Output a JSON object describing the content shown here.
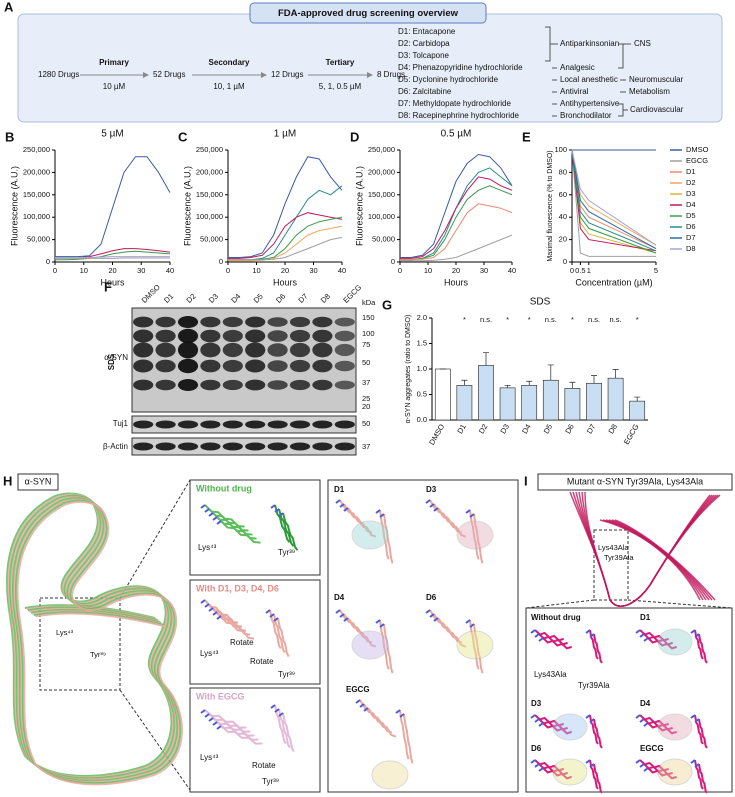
{
  "panel_a": {
    "letter": "A",
    "title": "FDA-approved drug screening overview",
    "start": "1280 Drugs",
    "stages": [
      {
        "name": "Primary",
        "dose": "10 µM",
        "result": "52 Drugs"
      },
      {
        "name": "Secondary",
        "dose": "10, 1 µM",
        "result": "12 Drugs"
      },
      {
        "name": "Tertiary",
        "dose": "5, 1, 0.5 µM",
        "result": "8 Drugs"
      }
    ],
    "drugs": [
      "D1: Entacapone",
      "D2: Carbidopa",
      "D3: Tolcapone",
      "D4: Phenazopyridine hydrochloride",
      "D5: Dyclonine hydrochloride",
      "D6: Zalcitabine",
      "D7: Methyldopate hydrochloride",
      "D8: Racepinephrine hydrochloride"
    ],
    "classes": [
      "Antiparkinsonian",
      "Analgesic",
      "Local anesthetic",
      "Antiviral",
      "Antihypertensive",
      "Bronchodilator"
    ],
    "systems": [
      "CNS",
      "Neuromuscular",
      "Metabolism",
      "Cardiovascular"
    ]
  },
  "chart_data": [
    {
      "type": "line",
      "panel": "B",
      "title": "5 µM",
      "xlabel": "Hours",
      "ylabel": "Fluorescence (A.U.)",
      "x": [
        0,
        4,
        8,
        12,
        16,
        20,
        24,
        28,
        32,
        36,
        40
      ],
      "xlim": [
        0,
        40
      ],
      "xticks": [
        0,
        10,
        20,
        30,
        40
      ],
      "ylim": [
        0,
        250000
      ],
      "yticks": [
        0,
        {
          "value": 50000,
          "label": "50,000"
        },
        {
          "value": 100000,
          "label": "100,000"
        },
        {
          "value": 150000,
          "label": "150,000"
        },
        {
          "value": 200000,
          "label": "200,000"
        },
        {
          "value": 250000,
          "label": "250,000"
        }
      ],
      "series": [
        {
          "color": "#3c5aa6",
          "values": [
            12000,
            12000,
            12000,
            14000,
            40000,
            120000,
            200000,
            235000,
            235000,
            200000,
            155000
          ]
        },
        {
          "color": "#c2185b",
          "values": [
            10000,
            10000,
            10000,
            12000,
            18000,
            25000,
            30000,
            30000,
            28000,
            25000,
            22000
          ]
        },
        {
          "color": "#3a9a4a",
          "values": [
            5000,
            5000,
            6000,
            8000,
            12000,
            18000,
            22000,
            24000,
            22000,
            20000,
            18000
          ]
        },
        {
          "color": "#a7a4d8",
          "values": [
            10000,
            10000,
            10000,
            10000,
            11000,
            12000,
            12000,
            12000,
            12000,
            12000,
            12000
          ]
        },
        {
          "color": "#a0a0a0",
          "values": [
            8000,
            8000,
            8000,
            8000,
            8000,
            8000,
            9000,
            9000,
            9000,
            9000,
            9000
          ]
        }
      ]
    },
    {
      "type": "line",
      "panel": "C",
      "title": "1 µM",
      "xlabel": "Hours",
      "ylabel": "Fluorescence (A.U.)",
      "x": [
        0,
        4,
        8,
        12,
        16,
        20,
        24,
        28,
        32,
        36,
        40
      ],
      "xlim": [
        0,
        40
      ],
      "xticks": [
        0,
        10,
        20,
        30,
        40
      ],
      "ylim": [
        0,
        250000
      ],
      "yticks": [
        0,
        {
          "value": 50000,
          "label": "50,000"
        },
        {
          "value": 100000,
          "label": "100,000"
        },
        {
          "value": 150000,
          "label": "150,000"
        },
        {
          "value": 200000,
          "label": "200,000"
        },
        {
          "value": 250000,
          "label": "250,000"
        }
      ],
      "series": [
        {
          "color": "#3c5aa6",
          "values": [
            10000,
            10000,
            12000,
            20000,
            60000,
            130000,
            190000,
            235000,
            230000,
            190000,
            160000
          ]
        },
        {
          "color": "#2a8c8c",
          "values": [
            5000,
            5000,
            5000,
            8000,
            20000,
            60000,
            100000,
            140000,
            160000,
            150000,
            170000
          ]
        },
        {
          "color": "#c2185b",
          "values": [
            8000,
            8000,
            10000,
            15000,
            40000,
            80000,
            100000,
            110000,
            105000,
            100000,
            95000
          ]
        },
        {
          "color": "#3a9a4a",
          "values": [
            5000,
            5000,
            5000,
            6000,
            10000,
            30000,
            60000,
            80000,
            90000,
            95000,
            100000
          ]
        },
        {
          "color": "#f2a65a",
          "values": [
            3000,
            3000,
            3000,
            4000,
            8000,
            20000,
            40000,
            60000,
            70000,
            75000,
            80000
          ]
        },
        {
          "color": "#a0a0a0",
          "values": [
            5000,
            5000,
            5000,
            5000,
            6000,
            10000,
            20000,
            30000,
            40000,
            50000,
            55000
          ]
        }
      ]
    },
    {
      "type": "line",
      "panel": "D",
      "title": "0.5 µM",
      "xlabel": "Hours",
      "ylabel": "Fluorescence (A.U.)",
      "x": [
        0,
        4,
        8,
        12,
        16,
        20,
        24,
        28,
        32,
        36,
        40
      ],
      "xlim": [
        0,
        40
      ],
      "xticks": [
        0,
        10,
        20,
        30,
        40
      ],
      "ylim": [
        0,
        250000
      ],
      "yticks": [
        0,
        {
          "value": 50000,
          "label": "50,000"
        },
        {
          "value": 100000,
          "label": "100,000"
        },
        {
          "value": 150000,
          "label": "150,000"
        },
        {
          "value": 200000,
          "label": "200,000"
        },
        {
          "value": 250000,
          "label": "250,000"
        }
      ],
      "series": [
        {
          "color": "#3c5aa6",
          "values": [
            10000,
            10000,
            15000,
            40000,
            110000,
            180000,
            220000,
            240000,
            235000,
            210000,
            170000
          ]
        },
        {
          "color": "#2a8c8c",
          "values": [
            5000,
            5000,
            8000,
            20000,
            60000,
            120000,
            170000,
            200000,
            210000,
            190000,
            170000
          ]
        },
        {
          "color": "#c2185b",
          "values": [
            8000,
            8000,
            12000,
            30000,
            70000,
            120000,
            160000,
            190000,
            185000,
            170000,
            160000
          ]
        },
        {
          "color": "#3a9a4a",
          "values": [
            5000,
            5000,
            8000,
            15000,
            50000,
            100000,
            140000,
            160000,
            170000,
            160000,
            150000
          ]
        },
        {
          "color": "#e88a6f",
          "values": [
            5000,
            5000,
            6000,
            10000,
            30000,
            70000,
            110000,
            130000,
            125000,
            120000,
            110000
          ]
        },
        {
          "color": "#a0a0a0",
          "values": [
            3000,
            3000,
            3000,
            4000,
            6000,
            10000,
            20000,
            30000,
            40000,
            50000,
            60000
          ]
        }
      ]
    },
    {
      "type": "line",
      "panel": "E",
      "xlabel": "Concentration (µM)",
      "ylabel": "Maximal fluorescence (% to DMSO)",
      "x": [
        0,
        0.5,
        1,
        5
      ],
      "xlim": [
        0,
        5
      ],
      "xticks": [
        0,
        0.5,
        1,
        5
      ],
      "ylim": [
        0,
        100
      ],
      "yticks": [
        0,
        20,
        40,
        60,
        80,
        100
      ],
      "legend": "right",
      "series": [
        {
          "name": "DMSO",
          "color": "#3c5aa6",
          "values": [
            100,
            100,
            100,
            100
          ]
        },
        {
          "name": "EGCG",
          "color": "#a0a0a0",
          "values": [
            100,
            8,
            5,
            5
          ]
        },
        {
          "name": "D1",
          "color": "#e88a6f",
          "values": [
            100,
            50,
            40,
            12
          ]
        },
        {
          "name": "D2",
          "color": "#f2a65a",
          "values": [
            100,
            60,
            50,
            15
          ]
        },
        {
          "name": "D3",
          "color": "#d4b83a",
          "values": [
            100,
            35,
            25,
            8
          ]
        },
        {
          "name": "D4",
          "color": "#c2185b",
          "values": [
            100,
            30,
            20,
            10
          ]
        },
        {
          "name": "D5",
          "color": "#3a9a4a",
          "values": [
            100,
            40,
            30,
            8
          ]
        },
        {
          "name": "D6",
          "color": "#2a8c8c",
          "values": [
            100,
            45,
            35,
            10
          ]
        },
        {
          "name": "D7",
          "color": "#2e6da4",
          "values": [
            100,
            55,
            45,
            12
          ]
        },
        {
          "name": "D8",
          "color": "#a7a4d8",
          "values": [
            100,
            65,
            55,
            15
          ]
        }
      ]
    },
    {
      "type": "bar",
      "panel": "G",
      "title": "SDS",
      "ylabel": "α-SYN aggregates (ratio to DMSO)",
      "categories": [
        "DMSO",
        "D1",
        "D2",
        "D3",
        "D4",
        "D5",
        "D6",
        "D7",
        "D8",
        "EGCG"
      ],
      "values": [
        1.0,
        0.68,
        1.07,
        0.63,
        0.68,
        0.78,
        0.62,
        0.72,
        0.82,
        0.37
      ],
      "errors": [
        0,
        0.1,
        0.25,
        0.05,
        0.08,
        0.3,
        0.12,
        0.15,
        0.17,
        0.08
      ],
      "significance": [
        null,
        "*",
        "n.s.",
        "*",
        "*",
        "n.s.",
        "*",
        "n.s.",
        "n.s.",
        "*"
      ],
      "colors": [
        "#ffffff",
        "#c9def3",
        "#c9def3",
        "#c9def3",
        "#c9def3",
        "#c9def3",
        "#c9def3",
        "#c9def3",
        "#c9def3",
        "#c9def3"
      ],
      "ylim": [
        0,
        2
      ],
      "yticks": [
        {
          "value": 0,
          "label": "0.0"
        },
        {
          "value": 0.5,
          "label": "0.5"
        },
        {
          "value": 1,
          "label": "1.0"
        },
        {
          "value": 1.5,
          "label": "1.5"
        },
        {
          "value": 2,
          "label": "2.0"
        }
      ]
    }
  ],
  "panel_f": {
    "letter": "F",
    "lanes": [
      "DMSO",
      "D1",
      "D2",
      "D3",
      "D4",
      "D5",
      "D6",
      "D7",
      "D8",
      "EGCG"
    ],
    "unit": "kDa",
    "markers": [
      150,
      100,
      75,
      50,
      37,
      25,
      20
    ],
    "section": "SDS",
    "target": "α-SYN",
    "tuj1": "Tuj1",
    "tuj1_marker": 50,
    "actin": "β-Actin",
    "actin_marker": 37
  },
  "panel_h": {
    "letter": "H",
    "title": "α-SYN",
    "overview": [
      "Lys⁴³",
      "Tyr³⁹"
    ],
    "insets": [
      {
        "title": "Without drug",
        "labels": [
          "Lys⁴³",
          "Tyr³⁹"
        ]
      },
      {
        "title": "With D1, D3, D4, D6",
        "labels": [
          "Lys⁴³",
          "Rotate",
          "Rotate",
          "Tyr³⁹"
        ]
      },
      {
        "title": "With EGCG",
        "labels": [
          "Lys⁴³",
          "Rotate",
          "Tyr³⁹"
        ]
      }
    ],
    "drugs": [
      "D1",
      "D3",
      "D4",
      "D6",
      "EGCG"
    ]
  },
  "panel_i": {
    "letter": "I",
    "title": "Mutant α-SYN Tyr39Ala, Lys43Ala",
    "overview": [
      "Lys43Ala",
      "Tyr39Ala"
    ],
    "without": "Without drug",
    "labels": [
      "Lys43Ala",
      "Tyr39Ala"
    ],
    "drugs": [
      "D1",
      "D3",
      "D4",
      "D6",
      "EGCG"
    ]
  }
}
